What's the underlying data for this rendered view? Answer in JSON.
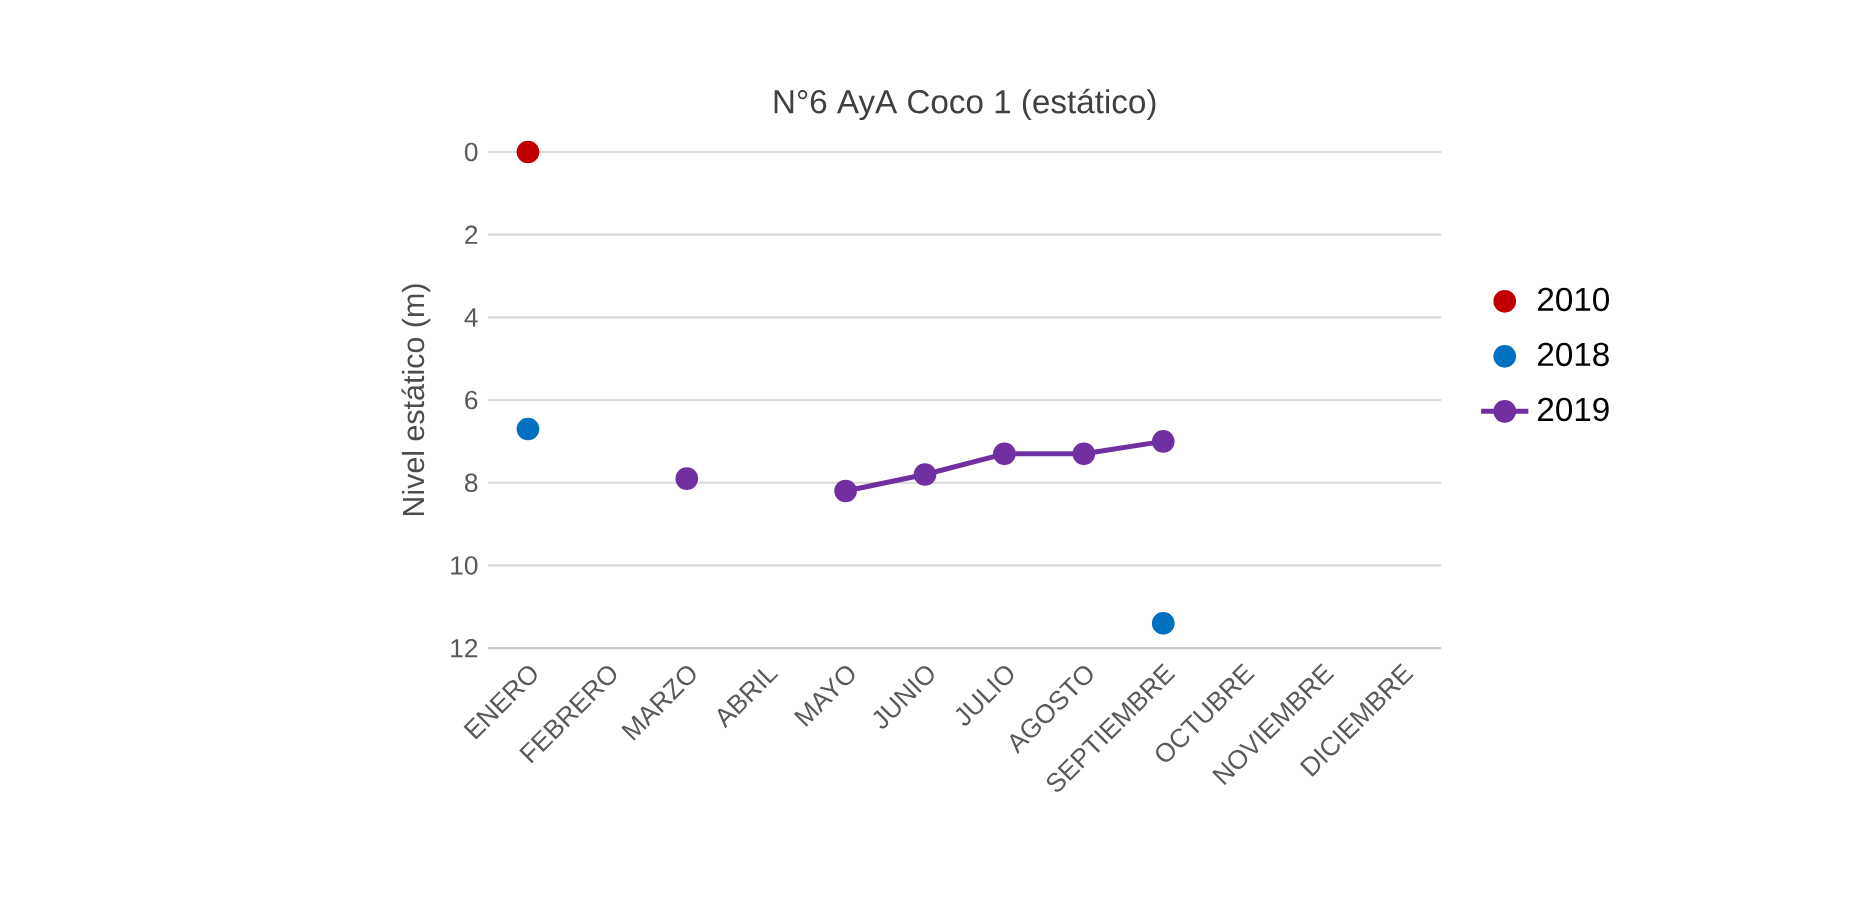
{
  "chart_data": {
    "type": "line",
    "title": "N°6 AyA Coco 1 (estático)",
    "ylabel": "Nivel estático (m)",
    "categories": [
      "ENERO",
      "FEBRERO",
      "MARZO",
      "ABRIL",
      "MAYO",
      "JUNIO",
      "JULIO",
      "AGOSTO",
      "SEPTIEMBRE",
      "OCTUBRE",
      "NOVIEMBRE",
      "DICIEMBRE"
    ],
    "series": [
      {
        "name": "2010",
        "type": "scatter",
        "color": "#c00000",
        "values": [
          0,
          null,
          null,
          null,
          null,
          null,
          null,
          null,
          null,
          null,
          null,
          null
        ]
      },
      {
        "name": "2018",
        "type": "scatter",
        "color": "#0070c0",
        "values": [
          6.7,
          null,
          null,
          null,
          null,
          null,
          null,
          null,
          11.4,
          null,
          null,
          null
        ]
      },
      {
        "name": "2019",
        "color": "#7030a0",
        "values": [
          null,
          null,
          7.9,
          null,
          8.2,
          7.8,
          7.3,
          7.3,
          7.0,
          null,
          null,
          null
        ]
      }
    ],
    "ylim": [
      12,
      0
    ],
    "yticks": [
      0,
      2,
      4,
      6,
      8,
      10,
      12
    ],
    "grid": "y",
    "legend": "right",
    "marker": "circle",
    "line_style": "solid"
  }
}
